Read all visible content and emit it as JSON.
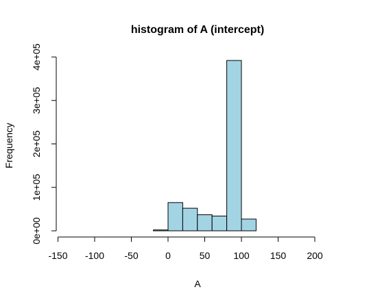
{
  "chart_data": {
    "type": "bar",
    "title": "histogram of A (intercept)",
    "xlabel": "A",
    "ylabel": "Frequency",
    "xlim": [
      -150,
      220
    ],
    "ylim": [
      0,
      400000
    ],
    "x_ticks": [
      -150,
      -100,
      -50,
      0,
      50,
      100,
      150,
      200
    ],
    "x_tick_labels": [
      "-150",
      "-100",
      "-50",
      "0",
      "50",
      "100",
      "150",
      "200"
    ],
    "y_ticks": [
      0,
      100000,
      200000,
      300000,
      400000
    ],
    "y_tick_labels": [
      "0e+00",
      "1e+05",
      "2e+05",
      "3e+05",
      "4e+05"
    ],
    "bin_edges": [
      -140,
      -120,
      -100,
      -80,
      -60,
      -40,
      -20,
      0,
      20,
      40,
      60,
      80,
      100,
      120,
      140,
      160,
      180,
      200,
      220
    ],
    "values": [
      0,
      0,
      0,
      0,
      0,
      0,
      2000,
      65000,
      52000,
      37000,
      34000,
      392000,
      27000,
      0,
      0,
      0,
      0,
      0
    ],
    "bar_color": "#a3d4e4",
    "bar_edge_color": "#000000",
    "grid": false
  }
}
